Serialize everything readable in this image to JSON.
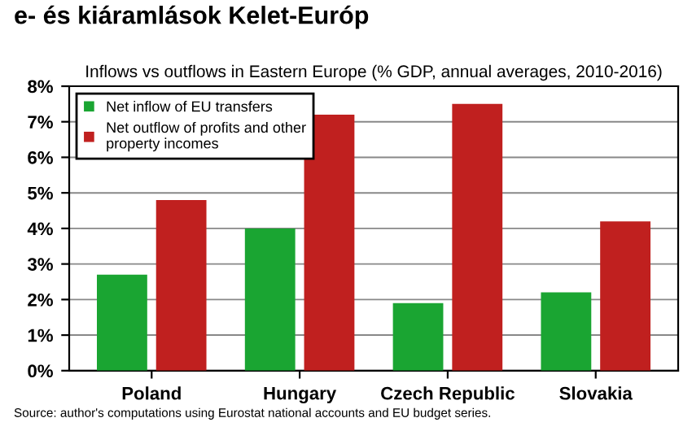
{
  "chart_data": {
    "type": "bar",
    "title": "e- és kiáramlások Kelet-Európ",
    "subtitle": "Inflows vs outflows in Eastern Europe (% GDP, annual averages, 2010-2016)",
    "categories": [
      "Poland",
      "Hungary",
      "Czech Republic",
      "Slovakia"
    ],
    "series": [
      {
        "name": "Net inflow of EU transfers",
        "color": "#1aa532",
        "values": [
          2.7,
          4.0,
          1.9,
          2.2
        ]
      },
      {
        "name": "Net outflow of profits and other property incomes",
        "color": "#c0201f",
        "values": [
          4.8,
          7.2,
          7.5,
          4.2
        ]
      }
    ],
    "ylim": [
      0,
      8
    ],
    "yticks": [
      {
        "value": 0,
        "label": "0%"
      },
      {
        "value": 1,
        "label": "1%"
      },
      {
        "value": 2,
        "label": "2%"
      },
      {
        "value": 3,
        "label": "3%"
      },
      {
        "value": 4,
        "label": "4%"
      },
      {
        "value": 5,
        "label": "5%"
      },
      {
        "value": 6,
        "label": "6%"
      },
      {
        "value": 7,
        "label": "7%"
      },
      {
        "value": 8,
        "label": "8%"
      }
    ],
    "grid": "y",
    "legend": "top left",
    "annotations": [
      "Source: author's computations using Eurostat national accounts and EU budget series."
    ]
  }
}
